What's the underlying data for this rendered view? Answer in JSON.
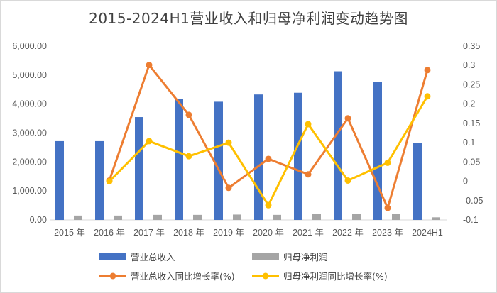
{
  "chart_data": {
    "type": "bar",
    "title": "2015-2024H1营业收入和归母净利润变动趋势图",
    "categories": [
      "2015 年",
      "2016 年",
      "2017 年",
      "2018 年",
      "2019 年",
      "2020 年",
      "2021 年",
      "2022 年",
      "2023 年",
      "2024H1"
    ],
    "y_left": {
      "ylim": [
        0,
        6000
      ],
      "ticks": [
        0,
        1000,
        2000,
        3000,
        4000,
        5000,
        6000
      ],
      "tick_labels": [
        "0.00",
        "1,000.00",
        "2,000.00",
        "3,000.00",
        "4,000.00",
        "5,000.00",
        "6,000.00"
      ]
    },
    "y_right": {
      "ylim": [
        -0.1,
        0.35
      ],
      "ticks": [
        -0.1,
        -0.05,
        0,
        0.05,
        0.1,
        0.15,
        0.2,
        0.25,
        0.3,
        0.35
      ],
      "tick_labels": [
        "-0.1",
        "-0.05",
        "0",
        "0.05",
        "0.1",
        "0.15",
        "0.2",
        "0.25",
        "0.3",
        "0.35"
      ]
    },
    "series": [
      {
        "name": "营业总收入",
        "kind": "bar",
        "axis": "left",
        "color": "#4472c4",
        "values": [
          2720,
          2720,
          3550,
          4170,
          4080,
          4330,
          4390,
          5130,
          4760,
          2650
        ]
      },
      {
        "name": "归母净利润",
        "kind": "bar",
        "axis": "left",
        "color": "#a5a5a5",
        "values": [
          150,
          150,
          175,
          175,
          185,
          175,
          210,
          205,
          200,
          90
        ]
      },
      {
        "name": "营业总收入同比增长率(%)",
        "kind": "line",
        "axis": "right",
        "color": "#ed7d31",
        "values": [
          null,
          0.002,
          0.301,
          0.172,
          -0.017,
          0.058,
          0.018,
          0.163,
          -0.069,
          0.288
        ]
      },
      {
        "name": "归母净利润同比增长率(%)",
        "kind": "line",
        "axis": "right",
        "color": "#ffc000",
        "values": [
          null,
          0.0,
          0.104,
          0.065,
          0.1,
          -0.062,
          0.148,
          0.002,
          0.048,
          0.22
        ]
      }
    ],
    "legend_position": "bottom",
    "grid": false
  }
}
